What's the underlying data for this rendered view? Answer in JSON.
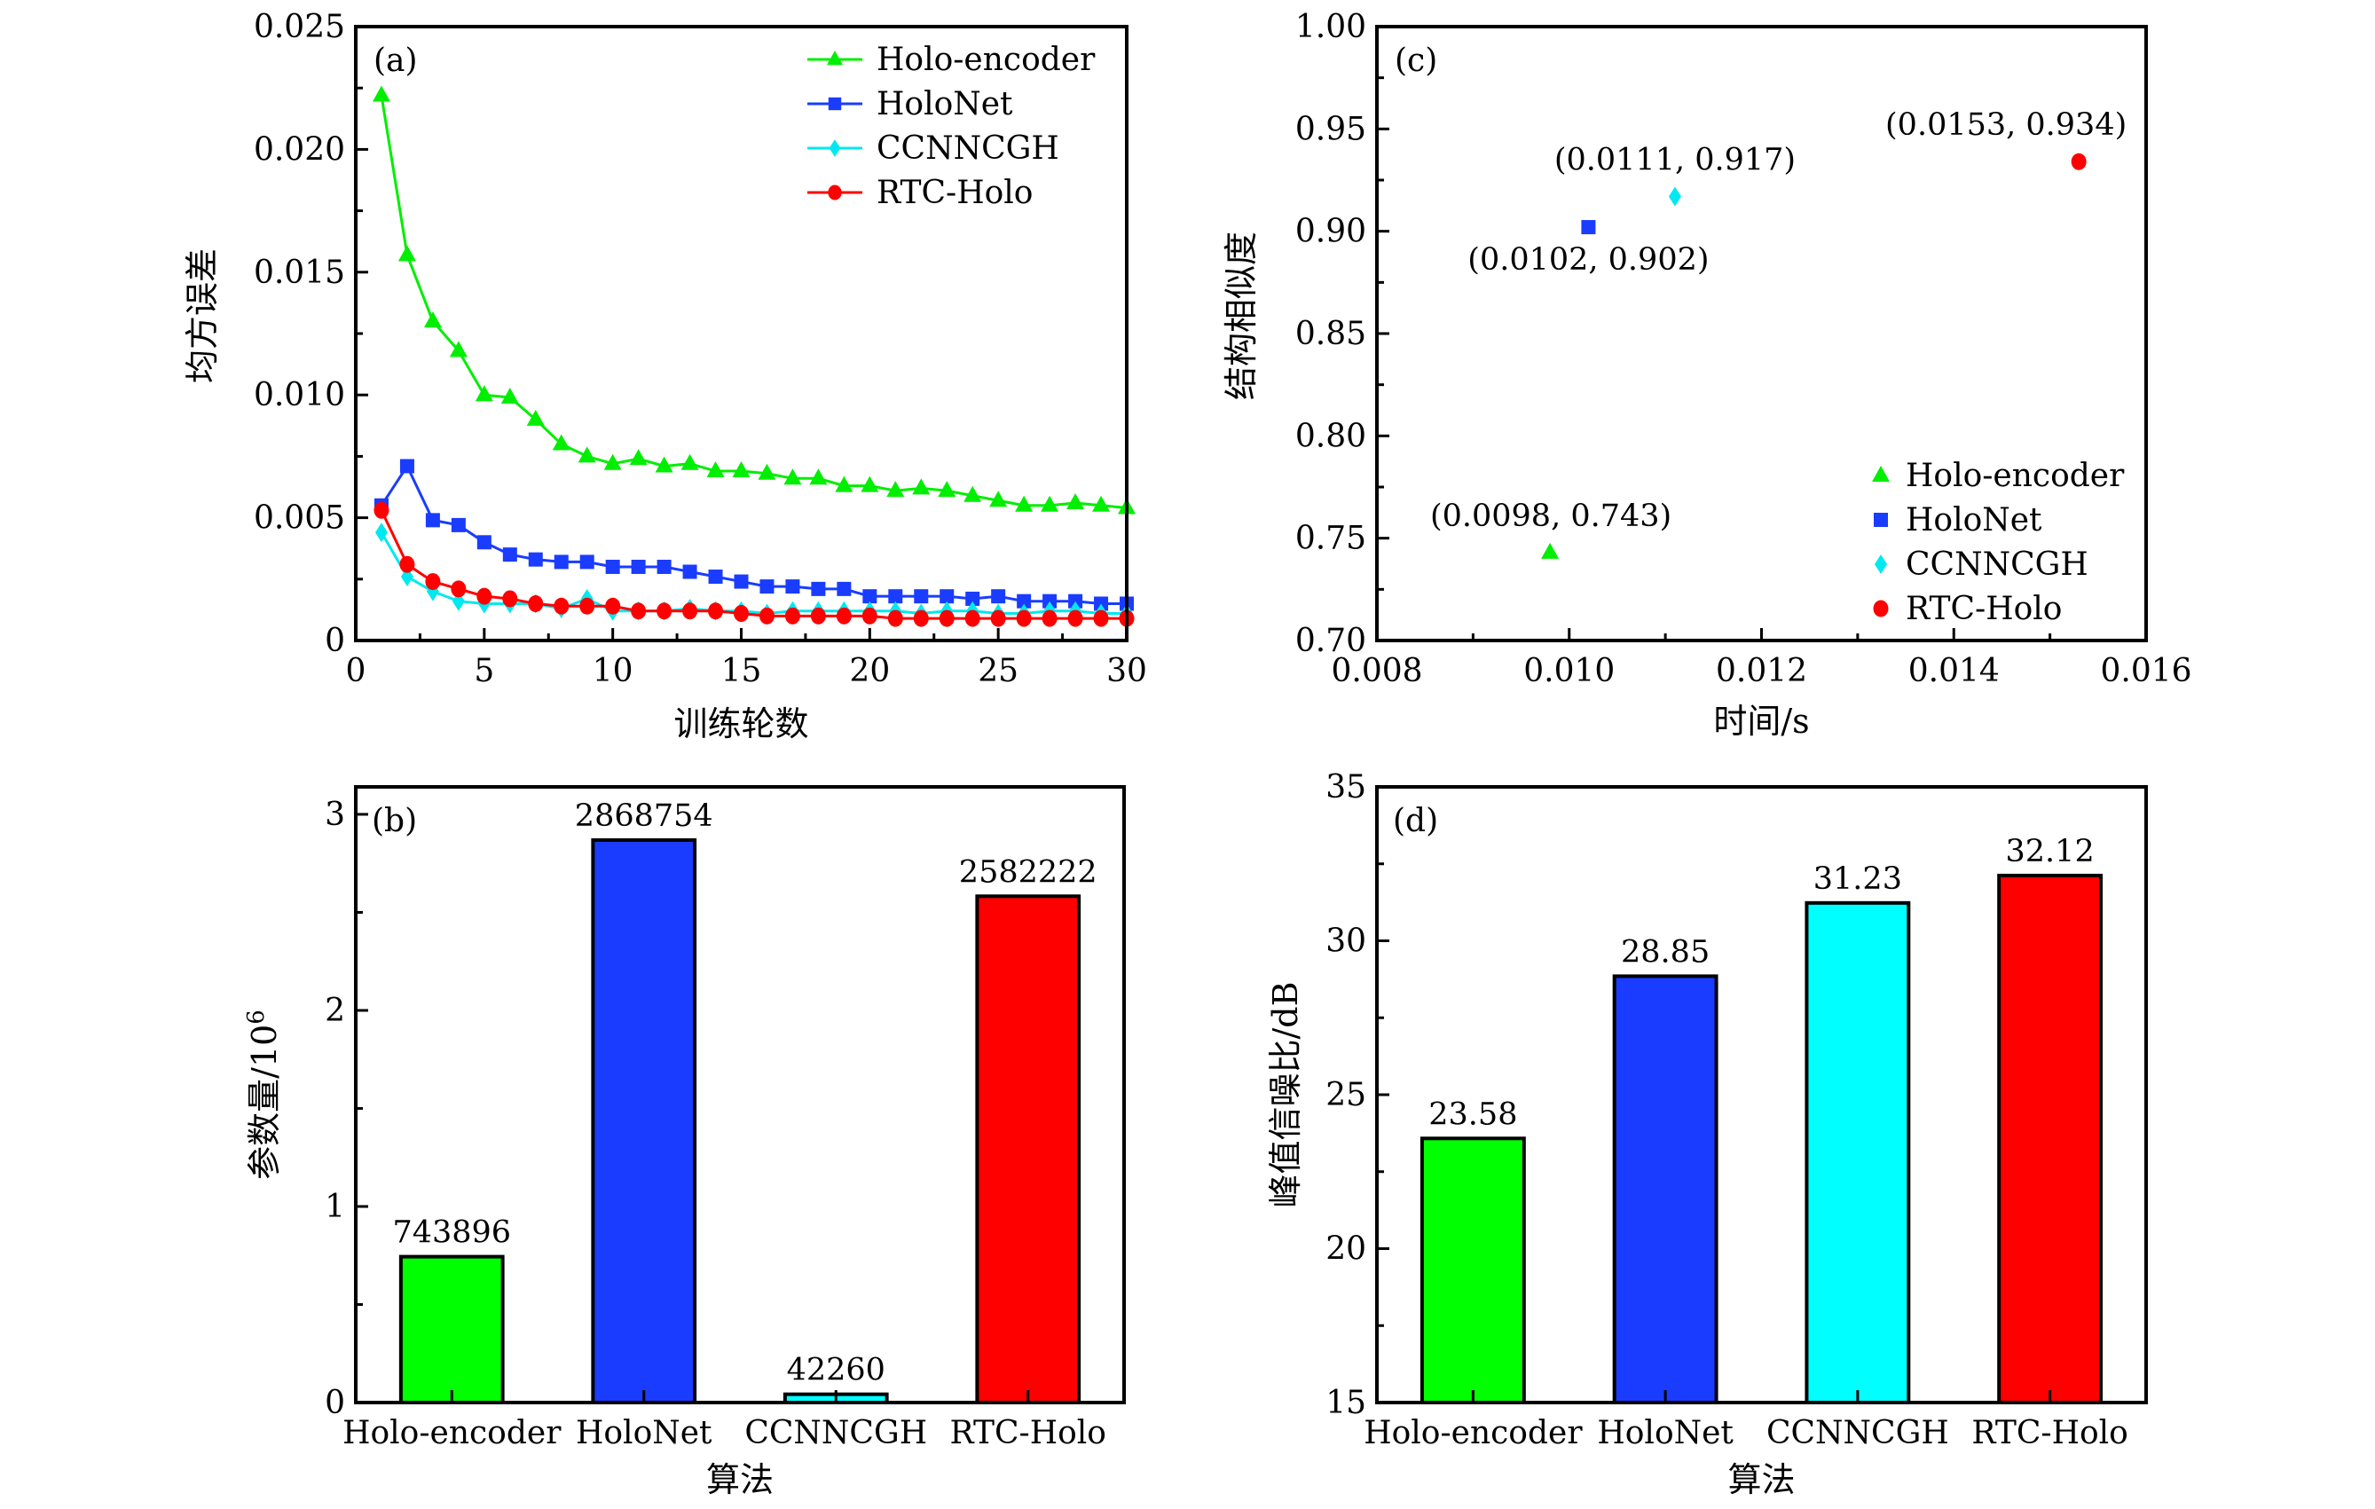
{
  "chart_data": [
    {
      "id": "a",
      "type": "line",
      "panel_tag": "(a)",
      "title": "",
      "xlabel": "训练轮数",
      "ylabel": "均方误差",
      "xlim": [
        0,
        30
      ],
      "ylim": [
        0,
        0.025
      ],
      "xticks": [
        0,
        5,
        10,
        15,
        20,
        25,
        30
      ],
      "xtick_labels": [
        "0",
        "5",
        "10",
        "15",
        "20",
        "25",
        "30"
      ],
      "yticks": [
        0,
        0.005,
        0.01,
        0.015,
        0.02,
        0.025
      ],
      "ytick_labels": [
        "0",
        "0.005",
        "0.010",
        "0.015",
        "0.020",
        "0.025"
      ],
      "grid": false,
      "legend_position": "top-right",
      "x": [
        1,
        2,
        3,
        4,
        5,
        6,
        7,
        8,
        9,
        10,
        11,
        12,
        13,
        14,
        15,
        16,
        17,
        18,
        19,
        20,
        21,
        22,
        23,
        24,
        25,
        26,
        27,
        28,
        29,
        30
      ],
      "series": [
        {
          "name": "Holo-encoder",
          "color": "#00ee00",
          "marker": "triangle",
          "values": [
            0.0222,
            0.0157,
            0.013,
            0.0118,
            0.01,
            0.0099,
            0.009,
            0.008,
            0.0075,
            0.0072,
            0.0074,
            0.0071,
            0.0072,
            0.0069,
            0.0069,
            0.0068,
            0.0066,
            0.0066,
            0.0063,
            0.0063,
            0.0061,
            0.0062,
            0.0061,
            0.0059,
            0.0057,
            0.0055,
            0.0055,
            0.0056,
            0.0055,
            0.0054
          ]
        },
        {
          "name": "HoloNet",
          "color": "#1a3cff",
          "marker": "square",
          "values": [
            0.0055,
            0.0071,
            0.0049,
            0.0047,
            0.004,
            0.0035,
            0.0033,
            0.0032,
            0.0032,
            0.003,
            0.003,
            0.003,
            0.0028,
            0.0026,
            0.0024,
            0.0022,
            0.0022,
            0.0021,
            0.0021,
            0.0018,
            0.0018,
            0.0018,
            0.0018,
            0.0017,
            0.0018,
            0.0016,
            0.0016,
            0.0016,
            0.0015,
            0.0015
          ]
        },
        {
          "name": "CCNNCGH",
          "color": "#00e8f0",
          "marker": "diamond",
          "values": [
            0.0044,
            0.0026,
            0.002,
            0.0016,
            0.0015,
            0.0015,
            0.0015,
            0.0013,
            0.0017,
            0.0012,
            0.0012,
            0.0012,
            0.0013,
            0.0012,
            0.0012,
            0.0011,
            0.0012,
            0.0012,
            0.0012,
            0.0012,
            0.0012,
            0.0011,
            0.0012,
            0.0012,
            0.0011,
            0.0011,
            0.0012,
            0.0012,
            0.0011,
            0.0011
          ]
        },
        {
          "name": "RTC-Holo",
          "color": "#ff0000",
          "marker": "circle",
          "values": [
            0.0053,
            0.0031,
            0.0024,
            0.0021,
            0.0018,
            0.0017,
            0.0015,
            0.0014,
            0.0014,
            0.0014,
            0.0012,
            0.0012,
            0.0012,
            0.0012,
            0.0011,
            0.001,
            0.001,
            0.001,
            0.001,
            0.001,
            0.0009,
            0.0009,
            0.0009,
            0.0009,
            0.0009,
            0.0009,
            0.0009,
            0.0009,
            0.0009,
            0.0009
          ]
        }
      ]
    },
    {
      "id": "b",
      "type": "bar",
      "panel_tag": "(b)",
      "title": "",
      "xlabel": "算法",
      "ylabel": "参数量/10",
      "ylabel_superscript": "6",
      "ylim": [
        0,
        3.14
      ],
      "yticks": [
        0,
        1,
        2,
        3
      ],
      "ytick_labels": [
        "0",
        "1",
        "2",
        "3"
      ],
      "grid": false,
      "categories": [
        "Holo-encoder",
        "HoloNet",
        "CCNNCGH",
        "RTC-Holo"
      ],
      "values": [
        0.743896,
        2.868754,
        0.04226,
        2.582222
      ],
      "data_labels": [
        "743896",
        "2868754",
        "42260",
        "2582222"
      ],
      "colors": [
        "#00ff00",
        "#1a3cff",
        "#00ffff",
        "#ff0000"
      ]
    },
    {
      "id": "c",
      "type": "scatter",
      "panel_tag": "(c)",
      "title": "",
      "xlabel": "时间/s",
      "ylabel": "结构相似度",
      "xlim": [
        0.008,
        0.016
      ],
      "ylim": [
        0.7,
        1.0
      ],
      "xticks": [
        0.008,
        0.01,
        0.012,
        0.014,
        0.016
      ],
      "xtick_labels": [
        "0.008",
        "0.010",
        "0.012",
        "0.014",
        "0.016"
      ],
      "yticks": [
        0.7,
        0.75,
        0.8,
        0.85,
        0.9,
        0.95,
        1.0
      ],
      "ytick_labels": [
        "0.70",
        "0.75",
        "0.80",
        "0.85",
        "0.90",
        "0.95",
        "1.00"
      ],
      "grid": false,
      "legend_position": "bottom-right",
      "points": [
        {
          "name": "Holo-encoder",
          "x": 0.0098,
          "y": 0.743,
          "color": "#00ee00",
          "marker": "triangle",
          "label": "(0.0098, 0.743)",
          "label_side": "above"
        },
        {
          "name": "HoloNet",
          "x": 0.0102,
          "y": 0.902,
          "color": "#1a3cff",
          "marker": "square",
          "label": "(0.0102, 0.902)",
          "label_side": "below"
        },
        {
          "name": "CCNNCGH",
          "x": 0.0111,
          "y": 0.917,
          "color": "#00e8f0",
          "marker": "diamond",
          "label": "(0.0111, 0.917)",
          "label_side": "above"
        },
        {
          "name": "RTC-Holo",
          "x": 0.0153,
          "y": 0.934,
          "color": "#ff0000",
          "marker": "circle",
          "label": "(0.0153, 0.934)",
          "label_side": "above"
        }
      ]
    },
    {
      "id": "d",
      "type": "bar",
      "panel_tag": "(d)",
      "title": "",
      "xlabel": "算法",
      "ylabel": "峰值信噪比/dB",
      "ylim": [
        15,
        35
      ],
      "yticks": [
        15,
        20,
        25,
        30,
        35
      ],
      "ytick_labels": [
        "15",
        "20",
        "25",
        "30",
        "35"
      ],
      "grid": false,
      "categories": [
        "Holo-encoder",
        "HoloNet",
        "CCNNCGH",
        "RTC-Holo"
      ],
      "values": [
        23.58,
        28.85,
        31.23,
        32.12
      ],
      "data_labels": [
        "23.58",
        "28.85",
        "31.23",
        "32.12"
      ],
      "colors": [
        "#00ff00",
        "#1a3cff",
        "#00ffff",
        "#ff0000"
      ]
    }
  ]
}
